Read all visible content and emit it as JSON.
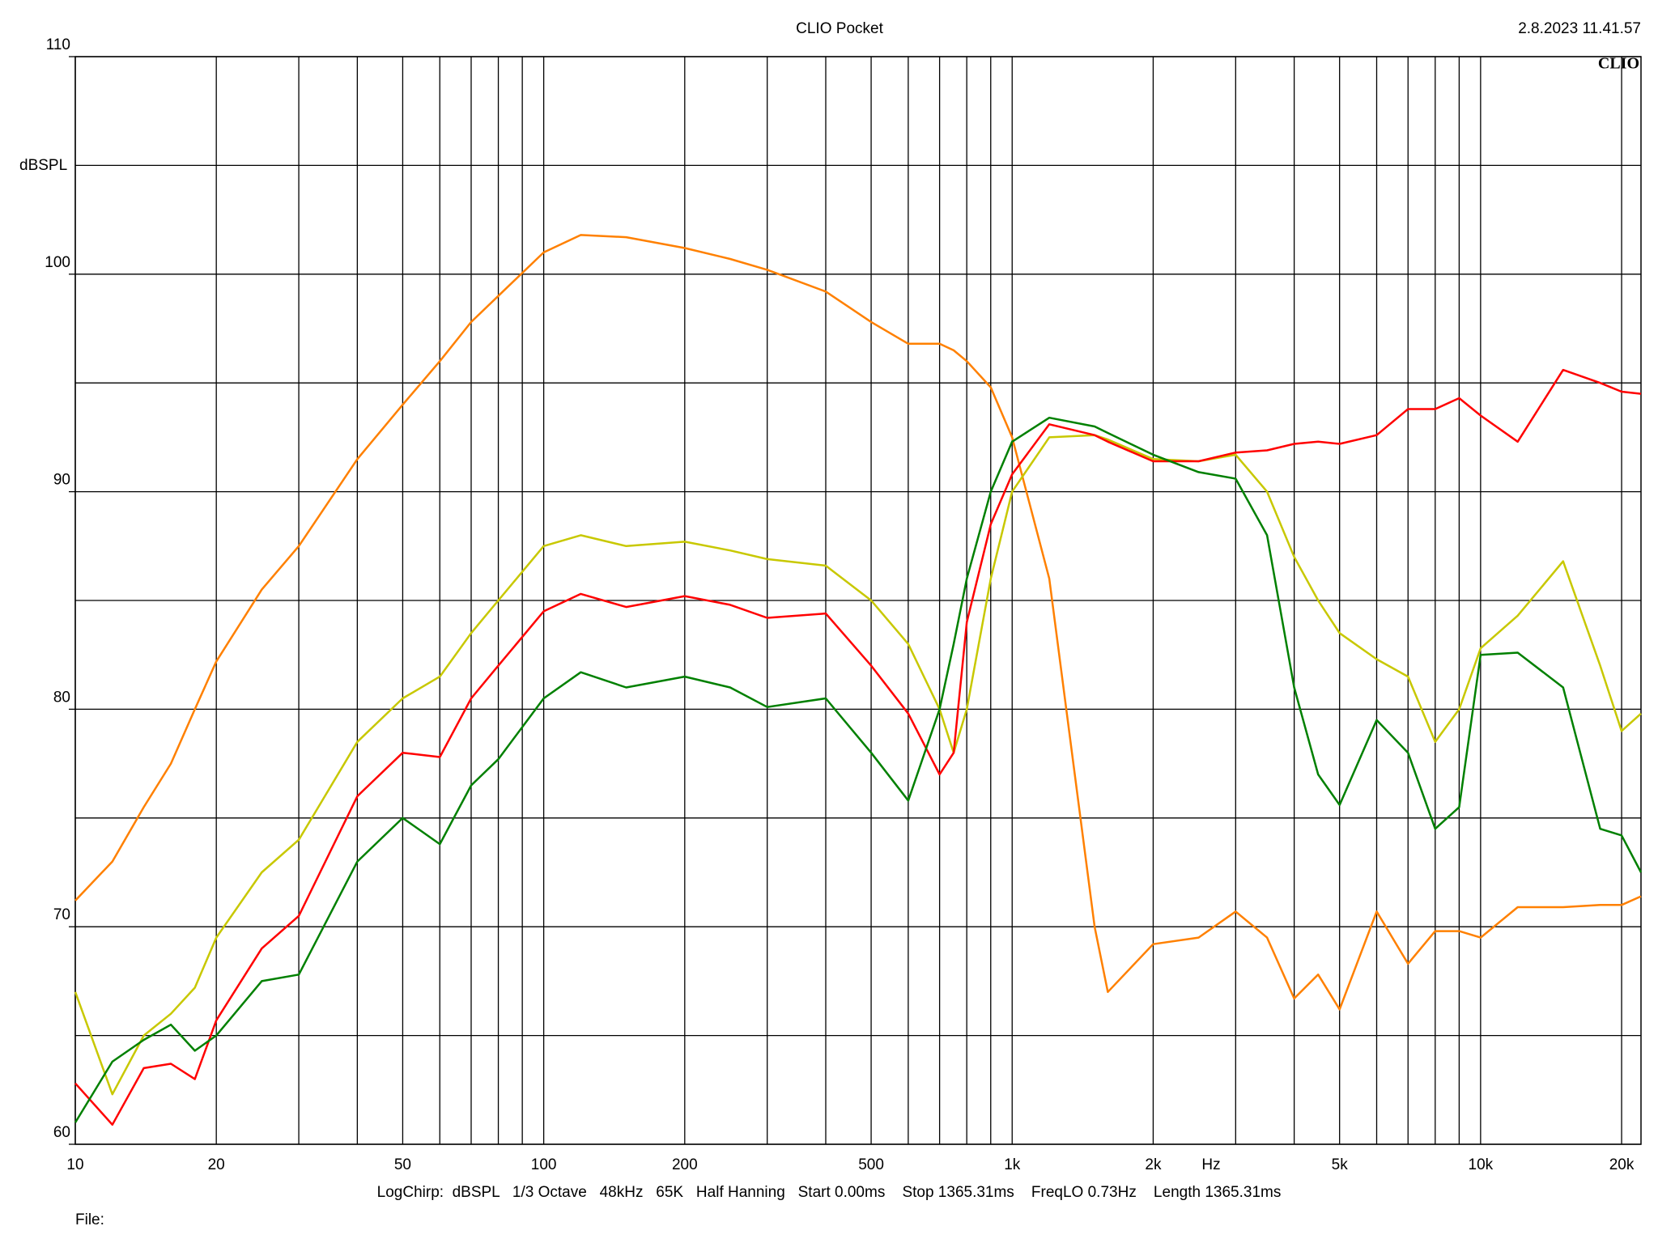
{
  "chart_data": {
    "type": "line",
    "title": "CLIO Pocket",
    "timestamp": "2.8.2023 11.41.57",
    "logo": "CLIO",
    "y_label": "dBSPL",
    "x_label": "Hz",
    "footer": "LogChirp:  dBSPL   1/3 Octave   48kHz   65K   Half Hanning   Start 0.00ms    Stop 1365.31ms    FreqLO 0.73Hz    Length 1365.31ms",
    "file_label": "File:",
    "x_scale": "log",
    "grid": true,
    "xlim": [
      10,
      22000
    ],
    "xticks": [
      10,
      20,
      50,
      100,
      200,
      500,
      {
        "value": 1000,
        "label": "1k"
      },
      {
        "value": 2000,
        "label": "2k"
      },
      {
        "value": 5000,
        "label": "5k"
      },
      {
        "value": 10000,
        "label": "10k"
      },
      {
        "value": 20000,
        "label": "20k"
      }
    ],
    "minor_xticks": [
      30,
      40,
      60,
      70,
      80,
      90,
      300,
      400,
      600,
      700,
      800,
      900,
      3000,
      4000,
      6000,
      7000,
      8000,
      9000
    ],
    "ylim": [
      60,
      110
    ],
    "yticks": [
      60,
      70,
      80,
      90,
      100,
      110
    ],
    "minor_yticks": [
      65,
      75,
      85,
      95,
      105
    ],
    "x": [
      10,
      12,
      14,
      16,
      18,
      20,
      25,
      30,
      40,
      50,
      60,
      70,
      80,
      100,
      120,
      150,
      200,
      250,
      300,
      400,
      500,
      600,
      700,
      750,
      800,
      900,
      1000,
      1200,
      1500,
      1600,
      2000,
      2500,
      3000,
      3500,
      4000,
      4500,
      5000,
      6000,
      7000,
      8000,
      9000,
      10000,
      12000,
      15000,
      18000,
      20000,
      22000
    ],
    "series": [
      {
        "color": "#ff8000",
        "values": [
          71.2,
          73,
          75.5,
          77.5,
          80,
          82.2,
          85.5,
          87.5,
          91.5,
          94,
          96,
          97.8,
          99,
          101,
          101.8,
          101.7,
          101.2,
          100.7,
          100.2,
          99.2,
          97.8,
          96.8,
          96.8,
          96.5,
          96,
          94.8,
          92.5,
          86,
          70,
          67,
          69.2,
          69.5,
          70.7,
          69.5,
          66.7,
          67.8,
          66.2,
          70.7,
          68.3,
          69.8,
          69.8,
          69.5,
          70.9,
          70.9,
          71,
          71,
          71.4
        ]
      },
      {
        "color": "#c8c800",
        "values": [
          67,
          62.3,
          65,
          66,
          67.2,
          69.5,
          72.5,
          74,
          78.5,
          80.5,
          81.5,
          83.5,
          85,
          87.5,
          88,
          87.5,
          87.7,
          87.3,
          86.9,
          86.6,
          85,
          83,
          80,
          78,
          80,
          86,
          90,
          92.5,
          92.6,
          92.4,
          91.5,
          91.4,
          91.7,
          90,
          87,
          85,
          83.5,
          82.3,
          81.5,
          78.5,
          80,
          82.8,
          84.3,
          86.8,
          82,
          79,
          79.8
        ]
      },
      {
        "color": "#ff0000",
        "values": [
          62.8,
          60.9,
          63.5,
          63.7,
          63,
          65.7,
          69,
          70.5,
          76,
          78,
          77.8,
          80.5,
          82,
          84.5,
          85.3,
          84.7,
          85.2,
          84.8,
          84.2,
          84.4,
          82,
          79.8,
          77,
          78,
          84,
          88.5,
          90.8,
          93.1,
          92.6,
          92.3,
          91.4,
          91.4,
          91.8,
          91.9,
          92.2,
          92.3,
          92.2,
          92.6,
          93.8,
          93.8,
          94.3,
          93.5,
          92.3,
          95.6,
          95,
          94.6,
          94.5
        ]
      },
      {
        "color": "#008000",
        "values": [
          61,
          63.8,
          64.8,
          65.5,
          64.3,
          65,
          67.5,
          67.8,
          73,
          75,
          73.8,
          76.5,
          77.7,
          80.5,
          81.7,
          81,
          81.5,
          81,
          80.1,
          80.5,
          78,
          75.8,
          80,
          83,
          86,
          90,
          92.3,
          93.4,
          93,
          92.7,
          91.7,
          90.9,
          90.6,
          88,
          81,
          77,
          75.6,
          79.5,
          78,
          74.5,
          75.5,
          82.5,
          82.6,
          81,
          74.5,
          74.2,
          72.5
        ]
      }
    ]
  }
}
